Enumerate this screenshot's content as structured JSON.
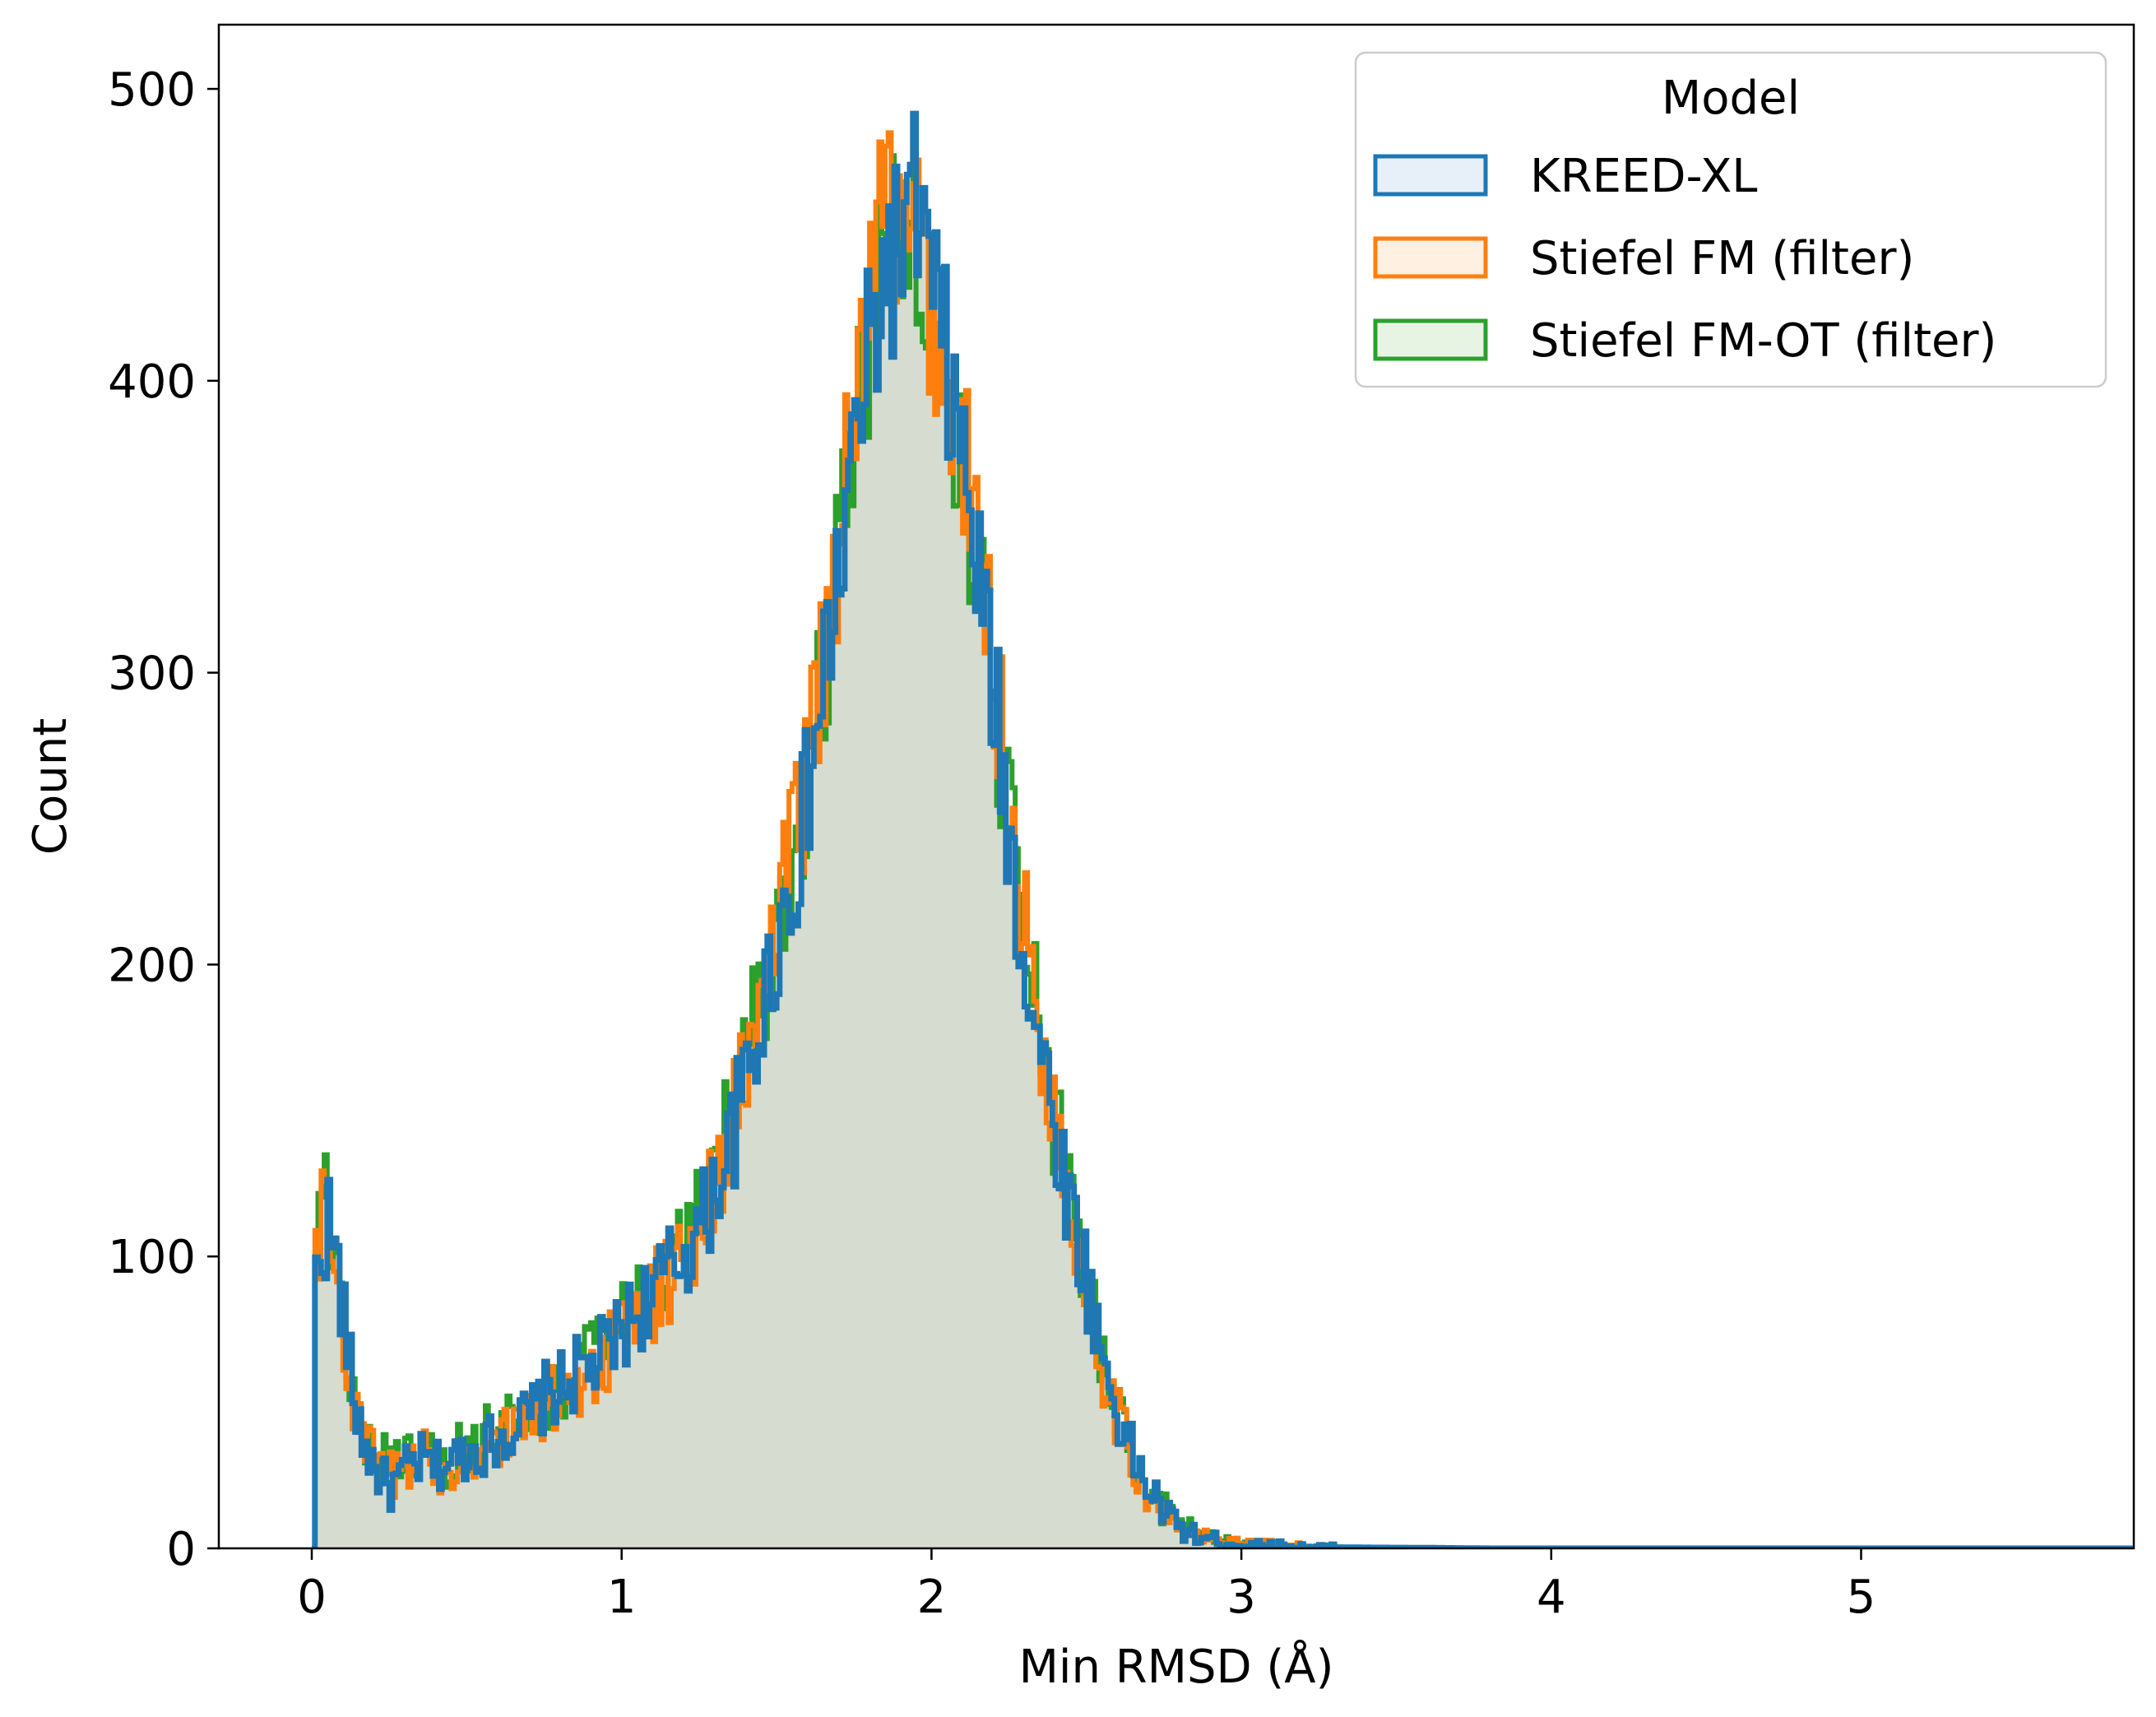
{
  "chart_data": {
    "type": "histogram-step",
    "title": "",
    "xlabel": "Min RMSD (Å)",
    "ylabel": "Count",
    "xlim": [
      -0.3,
      5.88
    ],
    "ylim": [
      0,
      522
    ],
    "xticks": [
      0,
      1,
      2,
      3,
      4,
      5
    ],
    "yticks": [
      0,
      100,
      200,
      300,
      400,
      500
    ],
    "grid": false,
    "legend": {
      "title": "Model",
      "position": "top-right"
    },
    "bin_width": 0.01,
    "fill_color": "#d6dcd0",
    "series": [
      {
        "name": "KREED-XL",
        "color": "#1f77b4",
        "fill": "#e7f0f8",
        "points": [
          [
            0.0,
            0
          ],
          [
            0.01,
            92
          ],
          [
            0.03,
            104
          ],
          [
            0.05,
            113
          ],
          [
            0.08,
            95
          ],
          [
            0.1,
            78
          ],
          [
            0.13,
            52
          ],
          [
            0.16,
            38
          ],
          [
            0.2,
            27
          ],
          [
            0.25,
            20
          ],
          [
            0.3,
            27
          ],
          [
            0.35,
            30
          ],
          [
            0.4,
            28
          ],
          [
            0.45,
            30
          ],
          [
            0.5,
            33
          ],
          [
            0.55,
            35
          ],
          [
            0.6,
            38
          ],
          [
            0.65,
            42
          ],
          [
            0.7,
            45
          ],
          [
            0.75,
            52
          ],
          [
            0.8,
            55
          ],
          [
            0.85,
            60
          ],
          [
            0.9,
            62
          ],
          [
            0.95,
            68
          ],
          [
            1.0,
            75
          ],
          [
            1.05,
            82
          ],
          [
            1.1,
            88
          ],
          [
            1.15,
            95
          ],
          [
            1.2,
            102
          ],
          [
            1.25,
            110
          ],
          [
            1.3,
            125
          ],
          [
            1.35,
            140
          ],
          [
            1.4,
            160
          ],
          [
            1.45,
            185
          ],
          [
            1.5,
            210
          ],
          [
            1.55,
            230
          ],
          [
            1.6,
            260
          ],
          [
            1.65,
            300
          ],
          [
            1.7,
            335
          ],
          [
            1.75,
            380
          ],
          [
            1.8,
            410
          ],
          [
            1.85,
            440
          ],
          [
            1.9,
            445
          ],
          [
            1.95,
            460
          ],
          [
            2.0,
            430
          ],
          [
            2.05,
            400
          ],
          [
            2.1,
            370
          ],
          [
            2.15,
            330
          ],
          [
            2.2,
            290
          ],
          [
            2.25,
            240
          ],
          [
            2.3,
            200
          ],
          [
            2.35,
            170
          ],
          [
            2.4,
            140
          ],
          [
            2.45,
            115
          ],
          [
            2.5,
            90
          ],
          [
            2.55,
            65
          ],
          [
            2.6,
            45
          ],
          [
            2.65,
            30
          ],
          [
            2.7,
            20
          ],
          [
            2.75,
            12
          ],
          [
            2.8,
            7
          ],
          [
            2.85,
            4
          ],
          [
            2.9,
            3
          ],
          [
            2.95,
            2
          ],
          [
            3.0,
            1
          ],
          [
            3.1,
            1
          ],
          [
            3.2,
            0.5
          ],
          [
            3.4,
            0.3
          ],
          [
            3.6,
            0.2
          ],
          [
            3.8,
            0
          ],
          [
            4.0,
            0
          ],
          [
            5.88,
            0
          ]
        ]
      },
      {
        "name": "Stiefel FM (filter)",
        "color": "#ff7f0e",
        "fill": "#fff0e2",
        "points": [
          [
            0.0,
            0
          ],
          [
            0.01,
            100
          ],
          [
            0.03,
            118
          ],
          [
            0.05,
            108
          ],
          [
            0.08,
            90
          ],
          [
            0.1,
            72
          ],
          [
            0.13,
            50
          ],
          [
            0.16,
            36
          ],
          [
            0.2,
            30
          ],
          [
            0.25,
            25
          ],
          [
            0.3,
            28
          ],
          [
            0.35,
            32
          ],
          [
            0.4,
            27
          ],
          [
            0.45,
            28
          ],
          [
            0.5,
            32
          ],
          [
            0.55,
            34
          ],
          [
            0.6,
            37
          ],
          [
            0.65,
            40
          ],
          [
            0.7,
            44
          ],
          [
            0.75,
            50
          ],
          [
            0.8,
            52
          ],
          [
            0.85,
            58
          ],
          [
            0.9,
            60
          ],
          [
            0.95,
            66
          ],
          [
            1.0,
            74
          ],
          [
            1.05,
            80
          ],
          [
            1.1,
            86
          ],
          [
            1.15,
            92
          ],
          [
            1.2,
            100
          ],
          [
            1.25,
            112
          ],
          [
            1.3,
            128
          ],
          [
            1.35,
            145
          ],
          [
            1.4,
            165
          ],
          [
            1.45,
            190
          ],
          [
            1.5,
            215
          ],
          [
            1.55,
            240
          ],
          [
            1.6,
            270
          ],
          [
            1.65,
            310
          ],
          [
            1.7,
            345
          ],
          [
            1.75,
            395
          ],
          [
            1.8,
            430
          ],
          [
            1.85,
            465
          ],
          [
            1.9,
            440
          ],
          [
            1.95,
            450
          ],
          [
            2.0,
            420
          ],
          [
            2.05,
            395
          ],
          [
            2.1,
            375
          ],
          [
            2.15,
            335
          ],
          [
            2.2,
            300
          ],
          [
            2.25,
            250
          ],
          [
            2.3,
            210
          ],
          [
            2.35,
            175
          ],
          [
            2.4,
            142
          ],
          [
            2.45,
            112
          ],
          [
            2.5,
            88
          ],
          [
            2.55,
            62
          ],
          [
            2.6,
            44
          ],
          [
            2.65,
            28
          ],
          [
            2.7,
            18
          ],
          [
            2.75,
            11
          ],
          [
            2.8,
            6
          ],
          [
            2.85,
            4
          ],
          [
            2.9,
            3
          ],
          [
            2.95,
            2
          ],
          [
            3.0,
            1.5
          ],
          [
            3.1,
            1
          ],
          [
            3.2,
            0.5
          ],
          [
            3.4,
            0.3
          ],
          [
            3.6,
            0.2
          ],
          [
            3.75,
            0
          ],
          [
            4.0,
            0
          ],
          [
            5.88,
            0
          ]
        ]
      },
      {
        "name": "Stiefel FM-OT (filter)",
        "color": "#2ca02c",
        "fill": "#e7f4e4",
        "points": [
          [
            0.0,
            0
          ],
          [
            0.01,
            110
          ],
          [
            0.03,
            128
          ],
          [
            0.05,
            112
          ],
          [
            0.08,
            92
          ],
          [
            0.1,
            74
          ],
          [
            0.13,
            54
          ],
          [
            0.16,
            40
          ],
          [
            0.2,
            32
          ],
          [
            0.25,
            30
          ],
          [
            0.3,
            30
          ],
          [
            0.35,
            33
          ],
          [
            0.4,
            29
          ],
          [
            0.45,
            31
          ],
          [
            0.5,
            36
          ],
          [
            0.55,
            38
          ],
          [
            0.6,
            40
          ],
          [
            0.65,
            43
          ],
          [
            0.7,
            46
          ],
          [
            0.75,
            52
          ],
          [
            0.8,
            55
          ],
          [
            0.85,
            61
          ],
          [
            0.9,
            64
          ],
          [
            0.95,
            70
          ],
          [
            1.0,
            78
          ],
          [
            1.05,
            85
          ],
          [
            1.1,
            92
          ],
          [
            1.15,
            98
          ],
          [
            1.2,
            104
          ],
          [
            1.25,
            115
          ],
          [
            1.3,
            130
          ],
          [
            1.35,
            148
          ],
          [
            1.4,
            168
          ],
          [
            1.45,
            192
          ],
          [
            1.5,
            218
          ],
          [
            1.55,
            238
          ],
          [
            1.6,
            265
          ],
          [
            1.65,
            305
          ],
          [
            1.7,
            340
          ],
          [
            1.75,
            385
          ],
          [
            1.8,
            420
          ],
          [
            1.85,
            445
          ],
          [
            1.9,
            448
          ],
          [
            1.95,
            455
          ],
          [
            2.0,
            425
          ],
          [
            2.05,
            398
          ],
          [
            2.1,
            368
          ],
          [
            2.15,
            328
          ],
          [
            2.2,
            292
          ],
          [
            2.25,
            245
          ],
          [
            2.3,
            205
          ],
          [
            2.35,
            172
          ],
          [
            2.4,
            143
          ],
          [
            2.45,
            116
          ],
          [
            2.5,
            92
          ],
          [
            2.55,
            66
          ],
          [
            2.6,
            47
          ],
          [
            2.65,
            31
          ],
          [
            2.7,
            21
          ],
          [
            2.75,
            13
          ],
          [
            2.8,
            8
          ],
          [
            2.85,
            5
          ],
          [
            2.9,
            3
          ],
          [
            2.95,
            2
          ],
          [
            3.0,
            1
          ],
          [
            3.1,
            1
          ],
          [
            3.2,
            0.5
          ],
          [
            3.4,
            0.3
          ],
          [
            3.6,
            0.2
          ],
          [
            3.8,
            0
          ],
          [
            4.0,
            0
          ],
          [
            5.88,
            0
          ]
        ]
      }
    ]
  }
}
